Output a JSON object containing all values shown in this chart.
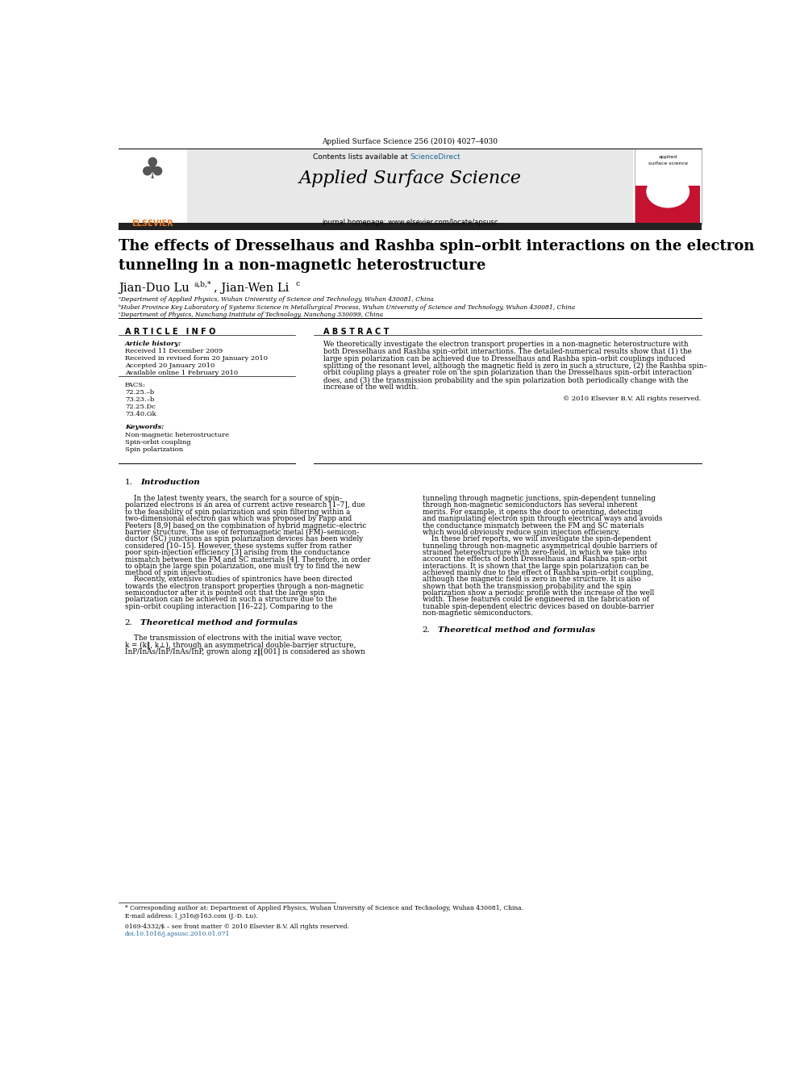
{
  "page_width": 9.92,
  "page_height": 13.23,
  "bg_color": "#ffffff",
  "header_journal": "Applied Surface Science 256 (2010) 4027–4030",
  "header_bg": "#e8e8e8",
  "journal_name": "Applied Surface Science",
  "contents_text": "Contents lists available at ScienceDirect",
  "sciencedirect_color": "#1a6496",
  "journal_url": "journal homepage: www.elsevier.com/locate/apsusc",
  "black_bar_color": "#222222",
  "title": "The effects of Dresselhaus and Rashba spin–orbit interactions on the electron\ntunneling in a non-magnetic heterostructure",
  "affil_a": "ᵃDepartment of Applied Physics, Wuhan University of Science and Technology, Wuhan 430081, China",
  "affil_b": "ᵇHubei Province Key Laboratory of Systems Science in Metallurgical Process, Wuhan University of Science and Technology, Wuhan 430081, China",
  "affil_c": "ᶜDepartment of Physics, Nanchang Institute of Technology, Nanchang 330099, China",
  "article_info_title": "A R T I C L E   I N F O",
  "abstract_title": "A B S T R A C T",
  "article_history_label": "Article history:",
  "received": "Received 11 December 2009",
  "revised": "Received in revised form 20 January 2010",
  "accepted": "Accepted 20 January 2010",
  "online": "Available online 1 February 2010",
  "pacs_label": "PACS:",
  "pacs_values": [
    "72.25.–b",
    "73.23.–b",
    "72.25.Dc",
    "73.40.Gk"
  ],
  "keywords_label": "Keywords:",
  "keywords": [
    "Non-magnetic heterostructure",
    "Spin-orbit coupling",
    "Spin polarization"
  ],
  "copyright": "© 2010 Elsevier B.V. All rights reserved.",
  "abstract_text": "We theoretically investigate the electron transport properties in a non-magnetic heterostructure with both Dresselhaus and Rashba spin–orbit interactions. The detailed-numerical results show that (1) the large spin polarization can be achieved due to Dresselhaus and Rashba spin–orbit couplings induced splitting of the resonant level, although the magnetic field is zero in such a structure, (2) the Rashba spin–orbit coupling plays a greater role on the spin polarization than the Dresselhaus spin–orbit interaction does, and (3) the transmission probability and the spin polarization both periodically change with the increase of the well width.",
  "footnote_star": "* Corresponding author at: Department of Applied Physics, Wuhan University of Science and Technology, Wuhan 430081, China.",
  "footnote_email": "E-mail address: l_j316@163.com (J.-D. Lu).",
  "footnote_doi": "0169-4332/$ – see front matter © 2010 Elsevier B.V. All rights reserved.",
  "footnote_doi2": "doi:10.1016/j.apsusc.2010.01.071",
  "elsevier_color": "#E87722",
  "cover_red": "#c41230"
}
